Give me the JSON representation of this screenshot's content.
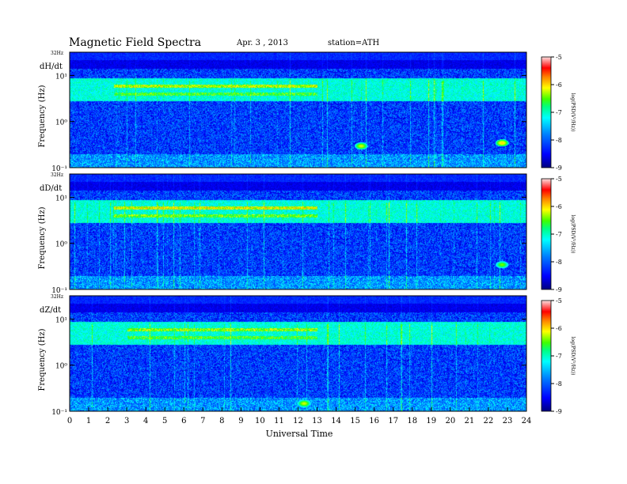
{
  "header": {
    "title": "Magnetic  Field  Spectra",
    "date": "Apr. 3  , 2013",
    "station": "station=ATH"
  },
  "chart_data": {
    "type": "heatmap",
    "xlabel": "Universal Time",
    "xlim": [
      0,
      24
    ],
    "x_ticks": [
      "0",
      "1",
      "2",
      "3",
      "4",
      "5",
      "6",
      "7",
      "8",
      "9",
      "10",
      "11",
      "12",
      "13",
      "14",
      "15",
      "16",
      "17",
      "18",
      "19",
      "20",
      "21",
      "22",
      "23",
      "24"
    ],
    "y_scale": "log",
    "ylim_hz": [
      0.1,
      32
    ],
    "colorbar": {
      "label": "log(PSD(V²/Hz))",
      "range": [
        -9,
        -5
      ],
      "ticks": [
        "-5",
        "-6",
        "-7",
        "-8",
        "-9"
      ]
    },
    "panels": [
      {
        "name": "dH/dt",
        "ylabel": "Frequency (Hz)",
        "y_ticks": [
          "10¹",
          "10⁰",
          "10⁻¹"
        ],
        "top_label": "32Hz",
        "features": [
          {
            "band_hz": 6.0,
            "hours": [
              2.3,
              13.0
            ],
            "level": -6.3
          },
          {
            "band_hz": 4.0,
            "hours": [
              2.3,
              13.0
            ],
            "level": -6.6
          },
          {
            "spot_hz": 0.3,
            "hour": 15.3,
            "level": -6.2
          },
          {
            "spot_hz": 0.35,
            "hour": 22.7,
            "level": -6.0
          }
        ]
      },
      {
        "name": "dD/dt",
        "ylabel": "Frequency (Hz)",
        "y_ticks": [
          "10¹",
          "10⁰",
          "10⁻¹"
        ],
        "top_label": "32Hz",
        "features": [
          {
            "band_hz": 6.0,
            "hours": [
              2.3,
              13.0
            ],
            "level": -6.2
          },
          {
            "band_hz": 4.0,
            "hours": [
              2.3,
              13.0
            ],
            "level": -6.5
          },
          {
            "spot_hz": 0.35,
            "hour": 22.7,
            "level": -6.4
          }
        ]
      },
      {
        "name": "dZ/dt",
        "ylabel": "Frequency (Hz)",
        "y_ticks": [
          "10¹",
          "10⁰",
          "10⁻¹"
        ],
        "top_label": "32Hz",
        "features": [
          {
            "band_hz": 6.0,
            "hours": [
              3.0,
              13.0
            ],
            "level": -6.4
          },
          {
            "band_hz": 4.0,
            "hours": [
              3.0,
              13.0
            ],
            "level": -6.6
          },
          {
            "spot_hz": 0.15,
            "hour": 12.3,
            "level": -6.2
          }
        ]
      }
    ]
  }
}
